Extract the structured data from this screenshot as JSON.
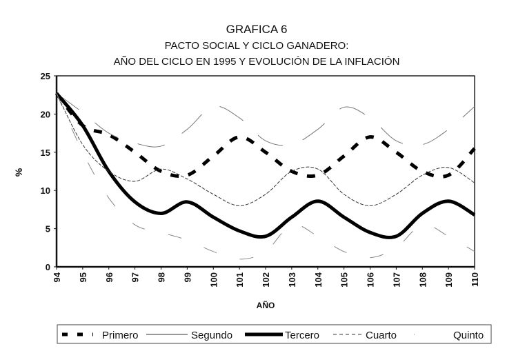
{
  "chart_data": {
    "type": "line",
    "title": "GRAFICA 6",
    "subtitle": [
      "PACTO SOCIAL Y CICLO GANADERO:",
      "AÑO DEL CICLO EN 1995 Y EVOLUCIÓN DE LA INFLACIÓN"
    ],
    "xlabel": "AÑO",
    "ylabel": "%",
    "x": [
      "94",
      "95",
      "96",
      "97",
      "98",
      "99",
      "100",
      "101",
      "102",
      "103",
      "104",
      "105",
      "106",
      "107",
      "108",
      "109",
      "110"
    ],
    "ylim": [
      0,
      25
    ],
    "yticks": [
      "0",
      "5",
      "10",
      "15",
      "20",
      "25"
    ],
    "grid": false,
    "legend_position": "bottom",
    "series": [
      {
        "name": "Primero",
        "style": "thick-dash",
        "values": [
          22.7,
          18.5,
          17.3,
          15,
          12.5,
          12,
          14.5,
          17,
          15,
          12.5,
          12,
          14.5,
          17,
          15,
          12.5,
          12,
          15.5
        ]
      },
      {
        "name": "Segundo",
        "style": "thin-solid",
        "values": [
          22.7,
          20.2,
          17.5,
          16.2,
          15.8,
          18,
          21,
          19.5,
          16.5,
          16,
          18,
          20.9,
          19.5,
          16.5,
          16,
          18,
          21
        ]
      },
      {
        "name": "Tercero",
        "style": "thick-solid",
        "values": [
          22.7,
          18.5,
          12.5,
          8.5,
          7,
          8.5,
          6.5,
          4.7,
          4,
          6.5,
          8.6,
          6.5,
          4.5,
          4,
          7,
          8.6,
          6.8
        ]
      },
      {
        "name": "Cuarto",
        "style": "thin-dash",
        "values": [
          22.7,
          16,
          12.5,
          11.2,
          12.8,
          11.5,
          9.5,
          8,
          9.5,
          12.5,
          12.8,
          9.5,
          8,
          9.5,
          12,
          13,
          11
        ]
      },
      {
        "name": "Quinto",
        "style": "dotted",
        "values": [
          22.7,
          15,
          9,
          5.5,
          4.5,
          3.5,
          2,
          1,
          2,
          5.5,
          4,
          2,
          1.2,
          2.5,
          5.5,
          4,
          2
        ]
      }
    ]
  }
}
